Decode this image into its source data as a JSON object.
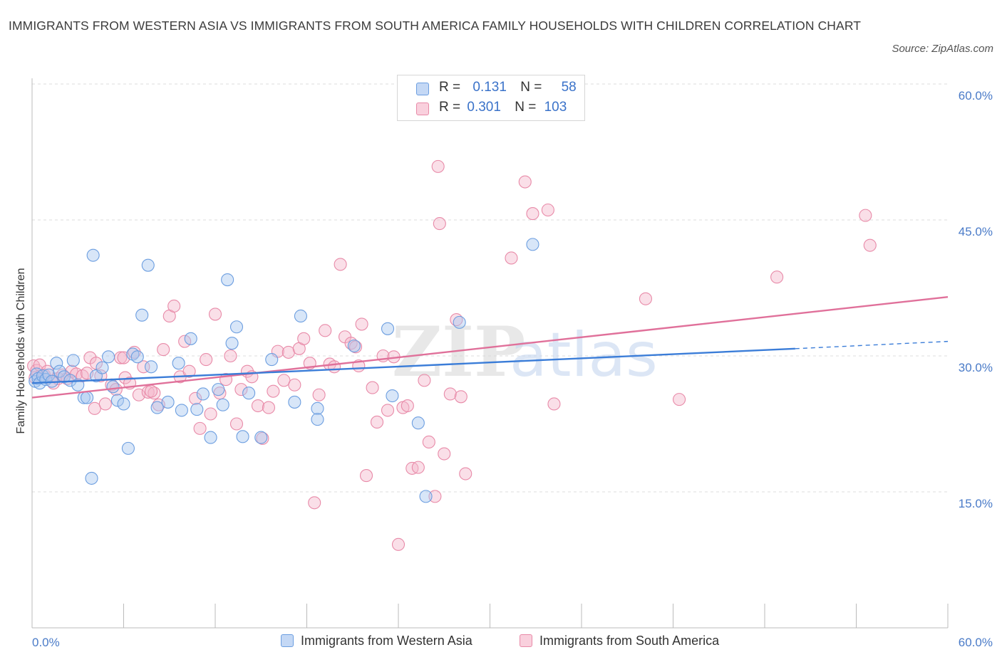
{
  "header": {
    "title": "IMMIGRANTS FROM WESTERN ASIA VS IMMIGRANTS FROM SOUTH AMERICA FAMILY HOUSEHOLDS WITH CHILDREN CORRELATION CHART",
    "source": "Source: ZipAtlas.com"
  },
  "legend": {
    "r_label": "R =",
    "n_label": "N =",
    "items": [
      {
        "r": "0.131",
        "n": "58"
      },
      {
        "r": "0.301",
        "n": "103"
      }
    ]
  },
  "watermark": {
    "zip": "ZIP",
    "atlas": "atlas"
  },
  "colors": {
    "blue_fill": "#a8c8f0",
    "blue_stroke": "#6c9ee0",
    "blue_line": "#3b7dd8",
    "pink_fill": "#f5b8cb",
    "pink_stroke": "#e88aa8",
    "pink_line": "#e0709a"
  },
  "chart_data": {
    "type": "scatter",
    "title": "IMMIGRANTS FROM WESTERN ASIA VS IMMIGRANTS FROM SOUTH AMERICA FAMILY HOUSEHOLDS WITH CHILDREN CORRELATION CHART",
    "xlabel": "",
    "ylabel": "Family Households with Children",
    "xlim": [
      0,
      60
    ],
    "ylim": [
      0,
      60
    ],
    "x_tick_labels": [
      "0.0%",
      "60.0%"
    ],
    "y_ticks": [
      15,
      30,
      45,
      60
    ],
    "y_tick_labels": [
      "15.0%",
      "30.0%",
      "45.0%",
      "60.0%"
    ],
    "grid": true,
    "legend_position": "top-center",
    "series": [
      {
        "name": "Immigrants from Western Asia",
        "r": 0.131,
        "n": 58,
        "trend": {
          "x0": 0,
          "y0": 27.0,
          "x1": 50,
          "y1": 30.8,
          "dash_to_x": 60,
          "dash_to_y": 31.6
        },
        "points": [
          [
            0.2,
            27.2
          ],
          [
            0.3,
            28.0
          ],
          [
            0.4,
            27.5
          ],
          [
            0.5,
            27.0
          ],
          [
            0.7,
            27.8
          ],
          [
            0.9,
            27.4
          ],
          [
            1.1,
            27.9
          ],
          [
            1.3,
            27.2
          ],
          [
            1.6,
            29.2
          ],
          [
            1.8,
            28.3
          ],
          [
            2.1,
            27.7
          ],
          [
            2.5,
            27.3
          ],
          [
            2.7,
            29.5
          ],
          [
            3.0,
            26.8
          ],
          [
            3.4,
            25.4
          ],
          [
            3.6,
            25.4
          ],
          [
            3.9,
            16.5
          ],
          [
            4.2,
            27.8
          ],
          [
            4.6,
            28.7
          ],
          [
            5.0,
            29.9
          ],
          [
            5.3,
            26.6
          ],
          [
            5.6,
            25.1
          ],
          [
            6.0,
            24.7
          ],
          [
            6.3,
            19.8
          ],
          [
            6.6,
            30.2
          ],
          [
            6.9,
            29.9
          ],
          [
            7.2,
            34.5
          ],
          [
            7.6,
            40.0
          ],
          [
            7.8,
            28.8
          ],
          [
            8.2,
            24.3
          ],
          [
            8.9,
            24.9
          ],
          [
            9.6,
            29.2
          ],
          [
            10.4,
            31.9
          ],
          [
            10.8,
            24.1
          ],
          [
            11.2,
            25.8
          ],
          [
            11.7,
            21.0
          ],
          [
            12.2,
            26.3
          ],
          [
            12.5,
            24.6
          ],
          [
            12.8,
            38.4
          ],
          [
            13.1,
            31.4
          ],
          [
            13.4,
            33.2
          ],
          [
            13.8,
            21.1
          ],
          [
            14.2,
            25.9
          ],
          [
            15.0,
            21.0
          ],
          [
            15.7,
            29.6
          ],
          [
            17.2,
            24.9
          ],
          [
            17.6,
            34.4
          ],
          [
            18.7,
            24.2
          ],
          [
            18.7,
            23.0
          ],
          [
            21.1,
            31.1
          ],
          [
            23.3,
            33.0
          ],
          [
            23.6,
            25.6
          ],
          [
            25.3,
            22.6
          ],
          [
            25.8,
            14.5
          ],
          [
            28.0,
            33.7
          ],
          [
            32.8,
            42.3
          ],
          [
            4.0,
            41.1
          ],
          [
            9.8,
            24.0
          ]
        ]
      },
      {
        "name": "Immigrants from South America",
        "r": 0.301,
        "n": 103,
        "trend": {
          "x0": 0,
          "y0": 25.4,
          "x1": 60,
          "y1": 36.5
        },
        "points": [
          [
            0.1,
            28.9
          ],
          [
            0.2,
            27.6
          ],
          [
            0.3,
            28.4
          ],
          [
            0.5,
            29.0
          ],
          [
            0.8,
            27.9
          ],
          [
            1.0,
            28.3
          ],
          [
            1.4,
            27.0
          ],
          [
            1.7,
            27.5
          ],
          [
            2.0,
            27.9
          ],
          [
            2.3,
            27.5
          ],
          [
            2.6,
            28.3
          ],
          [
            2.9,
            28.0
          ],
          [
            3.3,
            27.8
          ],
          [
            3.6,
            28.1
          ],
          [
            3.8,
            29.8
          ],
          [
            4.1,
            24.2
          ],
          [
            4.5,
            27.8
          ],
          [
            4.8,
            24.7
          ],
          [
            5.2,
            26.8
          ],
          [
            5.5,
            26.3
          ],
          [
            5.8,
            29.8
          ],
          [
            6.1,
            27.6
          ],
          [
            6.4,
            27.0
          ],
          [
            6.7,
            30.4
          ],
          [
            7.0,
            25.7
          ],
          [
            7.3,
            28.8
          ],
          [
            7.6,
            26.0
          ],
          [
            8.0,
            25.9
          ],
          [
            8.3,
            24.6
          ],
          [
            8.6,
            30.7
          ],
          [
            9.0,
            34.4
          ],
          [
            9.3,
            35.5
          ],
          [
            9.7,
            27.7
          ],
          [
            10.0,
            31.6
          ],
          [
            10.3,
            28.3
          ],
          [
            10.7,
            25.3
          ],
          [
            11.0,
            22.0
          ],
          [
            11.4,
            29.6
          ],
          [
            11.7,
            23.6
          ],
          [
            12.0,
            34.6
          ],
          [
            12.3,
            25.9
          ],
          [
            12.7,
            27.4
          ],
          [
            13.0,
            30.0
          ],
          [
            13.4,
            22.5
          ],
          [
            13.7,
            26.3
          ],
          [
            14.1,
            28.3
          ],
          [
            14.4,
            27.7
          ],
          [
            14.8,
            24.5
          ],
          [
            15.1,
            20.9
          ],
          [
            15.5,
            24.3
          ],
          [
            15.8,
            26.1
          ],
          [
            16.1,
            30.5
          ],
          [
            16.5,
            27.3
          ],
          [
            16.8,
            30.4
          ],
          [
            17.2,
            26.8
          ],
          [
            17.5,
            30.8
          ],
          [
            17.8,
            31.9
          ],
          [
            18.2,
            29.2
          ],
          [
            18.5,
            13.8
          ],
          [
            18.8,
            25.7
          ],
          [
            19.2,
            32.8
          ],
          [
            19.5,
            29.1
          ],
          [
            19.8,
            28.8
          ],
          [
            20.2,
            40.1
          ],
          [
            20.5,
            32.1
          ],
          [
            20.9,
            31.4
          ],
          [
            21.2,
            31.0
          ],
          [
            21.6,
            33.5
          ],
          [
            21.9,
            16.8
          ],
          [
            22.3,
            26.5
          ],
          [
            22.6,
            22.7
          ],
          [
            23.0,
            30.0
          ],
          [
            23.3,
            24.0
          ],
          [
            23.7,
            29.9
          ],
          [
            24.0,
            9.2
          ],
          [
            24.3,
            24.3
          ],
          [
            24.6,
            24.5
          ],
          [
            24.9,
            17.6
          ],
          [
            25.3,
            17.7
          ],
          [
            25.7,
            27.3
          ],
          [
            26.0,
            20.5
          ],
          [
            26.4,
            14.5
          ],
          [
            26.7,
            44.6
          ],
          [
            27.0,
            19.2
          ],
          [
            27.4,
            25.8
          ],
          [
            27.8,
            34.0
          ],
          [
            28.1,
            25.5
          ],
          [
            28.4,
            17.0
          ],
          [
            31.4,
            40.8
          ],
          [
            32.3,
            49.2
          ],
          [
            32.8,
            45.7
          ],
          [
            33.8,
            46.1
          ],
          [
            34.2,
            24.7
          ],
          [
            40.2,
            36.3
          ],
          [
            42.4,
            25.2
          ],
          [
            48.8,
            38.7
          ],
          [
            54.6,
            45.5
          ],
          [
            54.9,
            42.2
          ],
          [
            26.6,
            50.9
          ],
          [
            21.4,
            28.9
          ],
          [
            7.8,
            26.1
          ],
          [
            4.2,
            29.2
          ],
          [
            6.0,
            29.8
          ]
        ]
      }
    ]
  },
  "bottom_legend": [
    {
      "label": "Immigrants from Western Asia"
    },
    {
      "label": "Immigrants from South America"
    }
  ]
}
